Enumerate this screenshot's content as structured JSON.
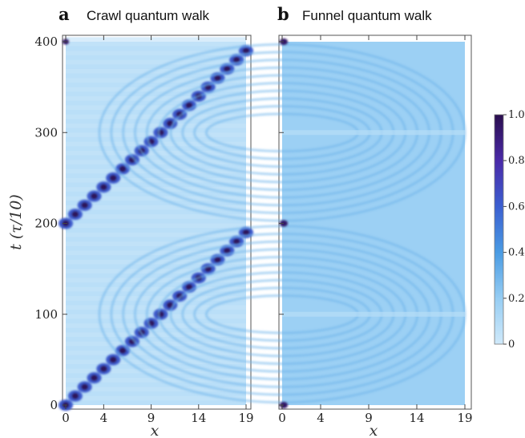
{
  "figure": {
    "ylabel": "t  (τ/10)",
    "xlabel": "x",
    "colormap": [
      "#cfe9fa",
      "#96cdf3",
      "#4a9be3",
      "#3b5fd0",
      "#4a2aa8",
      "#2a0e4e"
    ]
  },
  "chart_data": [
    {
      "type": "heatmap",
      "panel": "a",
      "title": "Crawl quantum walk",
      "x_ticks": [
        0,
        4,
        9,
        14,
        19
      ],
      "y_ticks": [
        0,
        100,
        200,
        300,
        400
      ],
      "xlim": [
        0,
        19
      ],
      "ylim": [
        0,
        400
      ],
      "peak_path": [
        {
          "t": 0,
          "x": 0
        },
        {
          "t": 190,
          "x": 19
        },
        {
          "t": 200,
          "x": 0
        },
        {
          "t": 390,
          "x": 19
        },
        {
          "t": 400,
          "x": 0
        }
      ]
    },
    {
      "type": "heatmap",
      "panel": "b",
      "title": "Funnel quantum walk",
      "x_ticks": [
        0,
        4,
        9,
        14,
        19
      ],
      "y_ticks": [
        0,
        100,
        200,
        300,
        400
      ],
      "xlim": [
        0,
        19
      ],
      "ylim": [
        0,
        400
      ],
      "peak_points": [
        {
          "t": 0,
          "x": 0
        },
        {
          "t": 200,
          "x": 0
        },
        {
          "t": 400,
          "x": 0
        }
      ]
    }
  ],
  "colorbar": {
    "ticks": [
      {
        "value": 0,
        "label": "0"
      },
      {
        "value": 0.2,
        "label": "0.2"
      },
      {
        "value": 0.4,
        "label": "0.4"
      },
      {
        "value": 0.6,
        "label": "0.6"
      },
      {
        "value": 0.8,
        "label": "0.8"
      },
      {
        "value": 1.0,
        "label": "1.0"
      }
    ]
  }
}
